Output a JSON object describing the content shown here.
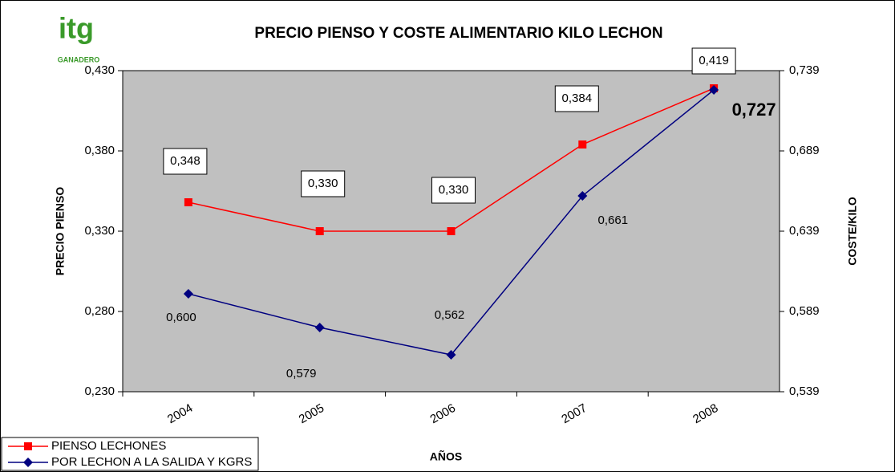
{
  "logo": {
    "name": "itg",
    "tagline": "GANADERO"
  },
  "chart_data": {
    "type": "line",
    "title": "PRECIO PIENSO Y COSTE ALIMENTARIO KILO LECHON",
    "x_label": "AÑOS",
    "y_label": "PRECIO PIENSO",
    "y2_label": "COSTE/KILO",
    "categories": [
      "2004",
      "2005",
      "2006",
      "2007",
      "2008"
    ],
    "ylim": [
      0.23,
      0.43
    ],
    "yticks": [
      {
        "value": 0.23,
        "label": "0,230"
      },
      {
        "value": 0.28,
        "label": "0,280"
      },
      {
        "value": 0.33,
        "label": "0,330"
      },
      {
        "value": 0.38,
        "label": "0,380"
      },
      {
        "value": 0.43,
        "label": "0,430"
      }
    ],
    "y2lim": [
      0.539,
      0.739
    ],
    "y2ticks": [
      {
        "value": 0.539,
        "label": "0,539"
      },
      {
        "value": 0.589,
        "label": "0,589"
      },
      {
        "value": 0.639,
        "label": "0,639"
      },
      {
        "value": 0.689,
        "label": "0,689"
      },
      {
        "value": 0.739,
        "label": "0,739"
      }
    ],
    "legend": "bottom-left",
    "series": [
      {
        "name": "PIENSO LECHONES",
        "color": "#ff0000",
        "marker": "square",
        "values": [
          0.348,
          0.33,
          0.33,
          0.384,
          0.419
        ],
        "value_labels": [
          "0,348",
          "0,330",
          "0,330",
          "0,384",
          "0,419"
        ]
      },
      {
        "name": "POR LECHON A LA SALIDA Y KGRS",
        "color": "#000080",
        "marker": "diamond",
        "axis": "y2",
        "values": [
          0.6,
          0.579,
          0.562,
          0.661,
          0.727
        ],
        "value_labels": [
          "0,600",
          "0,579",
          "0,562",
          "0,661",
          "0,727"
        ]
      }
    ]
  }
}
